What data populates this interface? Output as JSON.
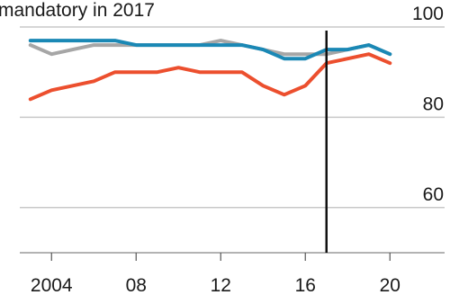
{
  "chart_data": {
    "type": "line",
    "title": "mandatory in 2017",
    "xlabel": "",
    "ylabel": "",
    "xlim": [
      2002.5,
      2020.5
    ],
    "ylim": [
      50,
      102
    ],
    "x_ticks": [
      2004,
      2008,
      2012,
      2016,
      2020
    ],
    "x_tick_labels": [
      "2004",
      "08",
      "12",
      "16",
      "20"
    ],
    "y_ticks": [
      60,
      80,
      100
    ],
    "y_tick_labels": [
      "60",
      "80",
      "100"
    ],
    "grid": "horizontal",
    "reference_line": {
      "x": 2017
    },
    "series": [
      {
        "color": "#a6a6a6",
        "x": [
          2003,
          2004,
          2005,
          2006,
          2007,
          2008,
          2009,
          2010,
          2011,
          2012,
          2013,
          2014,
          2015,
          2016,
          2017,
          2018,
          2019,
          2020
        ],
        "values": [
          96,
          94,
          95,
          96,
          96,
          96,
          96,
          96,
          96,
          97,
          96,
          95,
          94,
          94,
          94,
          95,
          96,
          94
        ]
      },
      {
        "color": "#1a88b5",
        "x": [
          2003,
          2004,
          2005,
          2006,
          2007,
          2008,
          2009,
          2010,
          2011,
          2012,
          2013,
          2014,
          2015,
          2016,
          2017,
          2018,
          2019,
          2020
        ],
        "values": [
          97,
          97,
          97,
          97,
          97,
          96,
          96,
          96,
          96,
          96,
          96,
          95,
          93,
          93,
          95,
          95,
          96,
          94
        ]
      },
      {
        "color": "#ec4f2e",
        "x": [
          2003,
          2004,
          2005,
          2006,
          2007,
          2008,
          2009,
          2010,
          2011,
          2012,
          2013,
          2014,
          2015,
          2016,
          2017,
          2018,
          2019,
          2020
        ],
        "values": [
          84,
          86,
          87,
          88,
          90,
          90,
          90,
          91,
          90,
          90,
          90,
          87,
          85,
          87,
          92,
          93,
          94,
          92
        ]
      }
    ]
  }
}
